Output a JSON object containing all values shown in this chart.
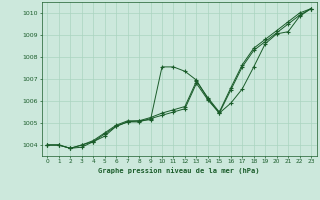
{
  "title": "Graphe pression niveau de la mer (hPa)",
  "bg_color": "#cce8dc",
  "grid_color": "#aad4c0",
  "line_color": "#1a5c2a",
  "xlim": [
    -0.5,
    23.5
  ],
  "ylim": [
    1003.5,
    1010.5
  ],
  "yticks": [
    1004,
    1005,
    1006,
    1007,
    1008,
    1009,
    1010
  ],
  "xticks": [
    0,
    1,
    2,
    3,
    4,
    5,
    6,
    7,
    8,
    9,
    10,
    11,
    12,
    13,
    14,
    15,
    16,
    17,
    18,
    19,
    20,
    21,
    22,
    23
  ],
  "s1_x": [
    0,
    1,
    2,
    3,
    4,
    5,
    6,
    7,
    8,
    9,
    10,
    11,
    12,
    13,
    14,
    15,
    16,
    17,
    18,
    19,
    20,
    21,
    22,
    23
  ],
  "s1_y": [
    1004.0,
    1004.0,
    1003.85,
    1003.9,
    1004.15,
    1004.4,
    1004.85,
    1005.05,
    1005.1,
    1005.15,
    1007.55,
    1007.55,
    1007.35,
    1006.95,
    1006.1,
    1005.45,
    1005.9,
    1006.55,
    1007.55,
    1008.6,
    1009.05,
    1009.15,
    1009.85,
    1010.2
  ],
  "s2_x": [
    0,
    1,
    2,
    3,
    4,
    5,
    6,
    7,
    8,
    9,
    10,
    11,
    12,
    13,
    14,
    15,
    16,
    17,
    18,
    19,
    20,
    21,
    22,
    23
  ],
  "s2_y": [
    1004.0,
    1004.0,
    1003.85,
    1004.0,
    1004.15,
    1004.5,
    1004.85,
    1005.05,
    1005.05,
    1005.2,
    1005.35,
    1005.5,
    1005.65,
    1006.8,
    1006.05,
    1005.45,
    1006.5,
    1007.55,
    1008.3,
    1008.7,
    1009.1,
    1009.5,
    1009.9,
    1010.2
  ],
  "s3_x": [
    0,
    1,
    2,
    3,
    4,
    5,
    6,
    7,
    8,
    9,
    10,
    11,
    12,
    13,
    14,
    15,
    16,
    17,
    18,
    19,
    20,
    21,
    22,
    23
  ],
  "s3_y": [
    1004.0,
    1004.0,
    1003.85,
    1004.0,
    1004.2,
    1004.55,
    1004.9,
    1005.1,
    1005.1,
    1005.25,
    1005.45,
    1005.6,
    1005.75,
    1006.9,
    1006.15,
    1005.5,
    1006.6,
    1007.65,
    1008.4,
    1008.8,
    1009.2,
    1009.6,
    1010.0,
    1010.2
  ]
}
